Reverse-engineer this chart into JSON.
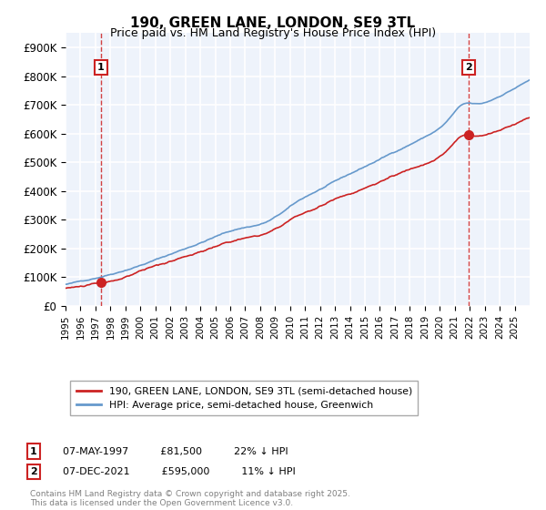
{
  "title": "190, GREEN LANE, LONDON, SE9 3TL",
  "subtitle": "Price paid vs. HM Land Registry's House Price Index (HPI)",
  "xlim_start": 1995.0,
  "xlim_end": 2026.0,
  "ylim": [
    0,
    950000
  ],
  "yticks": [
    0,
    100000,
    200000,
    300000,
    400000,
    500000,
    600000,
    700000,
    800000,
    900000
  ],
  "ytick_labels": [
    "£0",
    "£100K",
    "£200K",
    "£300K",
    "£400K",
    "£500K",
    "£600K",
    "£700K",
    "£800K",
    "£900K"
  ],
  "hpi_color": "#6699cc",
  "price_color": "#cc2222",
  "marker1_date": 1997.35,
  "marker1_price": 81500,
  "marker2_date": 2021.92,
  "marker2_price": 595000,
  "legend_line1": "190, GREEN LANE, LONDON, SE9 3TL (semi-detached house)",
  "legend_line2": "HPI: Average price, semi-detached house, Greenwich",
  "annotation1_text": "07-MAY-1997          £81,500          22% ↓ HPI",
  "annotation2_text": "07-DEC-2021          £595,000          11% ↓ HPI",
  "footer": "Contains HM Land Registry data © Crown copyright and database right 2025.\nThis data is licensed under the Open Government Licence v3.0.",
  "plot_bg_color": "#eef3fb",
  "grid_color": "#ffffff"
}
